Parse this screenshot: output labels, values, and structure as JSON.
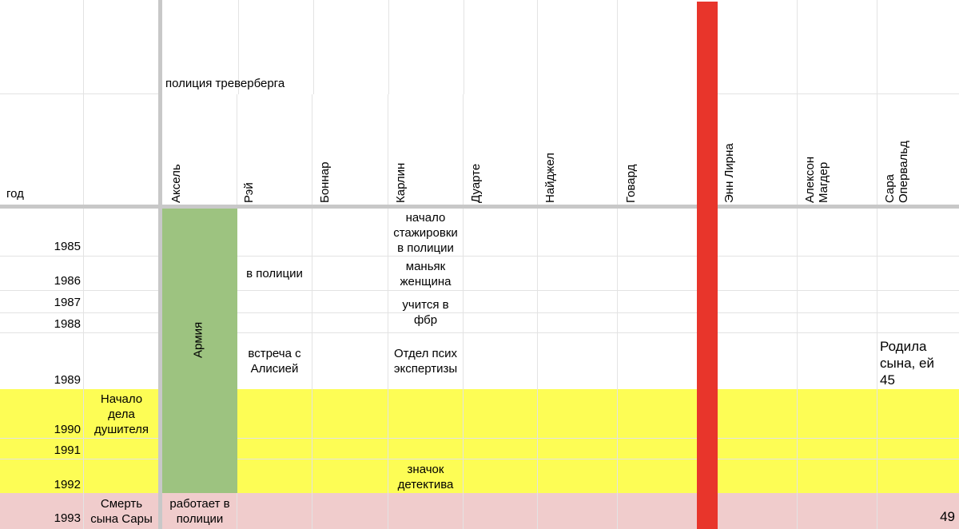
{
  "sheet": {
    "group_header": "полиция треверберга",
    "year_header": "год",
    "columns": [
      {
        "name": "Аксель"
      },
      {
        "name": "Рэй"
      },
      {
        "name": "Боннар"
      },
      {
        "name": "Карлин"
      },
      {
        "name": "Дуарте"
      },
      {
        "name": "Найджел"
      },
      {
        "name": "Говард"
      },
      {
        "name": "Энн Лирна"
      },
      {
        "name": "Алексон\nМагдер"
      },
      {
        "name": "Сара\nОпервальд"
      }
    ],
    "years": [
      "1985",
      "1986",
      "1987",
      "1988",
      "1989",
      "1990",
      "1991",
      "1992",
      "1993"
    ],
    "notes": {
      "event_1990": "Начало\nдела\nдушителя",
      "event_1993": "Смерть\nсына Сары",
      "army": "Армия",
      "axel_1993": "работает в\nполиции",
      "ray_1986": "в полиции",
      "ray_1989": "встреча с\nАлисией",
      "karlin_1985": "начало\nстажировки\nв полиции",
      "karlin_1986": "маньяк\nженщина",
      "karlin_1988": "учится в\nфбр",
      "karlin_1989": "Отдел псих\nэкспертизы",
      "karlin_1992": "значок\nдетектива",
      "sara_1989": "Родила\nсына, ей\n45",
      "sara_1993": "49"
    },
    "colors": {
      "yellow_band": "#fdfd55",
      "pink_band": "#f0cccc",
      "army_green": "#9dc380",
      "red_divider": "#e8352b",
      "grid": "#e3e3e3"
    }
  }
}
